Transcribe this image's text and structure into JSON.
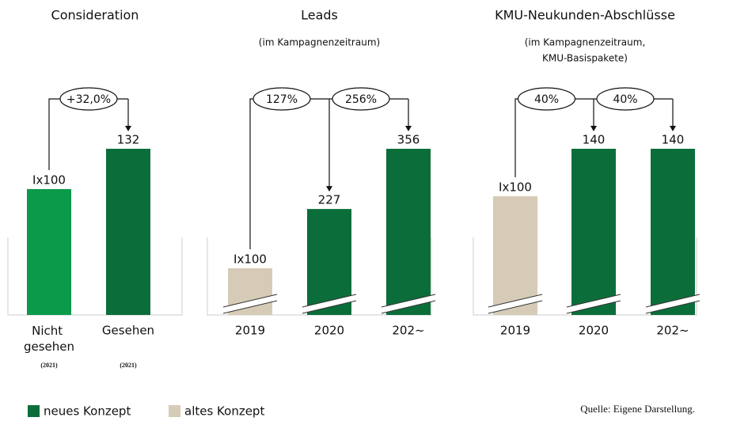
{
  "chart_data": [
    {
      "type": "bar",
      "title": "Consideration",
      "subtitle": [],
      "categories": [
        "Nicht gesehen",
        "Gesehen"
      ],
      "category_notes": [
        "(2021)",
        "(2021)"
      ],
      "values": [
        100,
        132
      ],
      "value_labels": [
        "Ix100",
        "132"
      ],
      "colors": [
        "#0a9a4a",
        "#0b6e3a"
      ],
      "annotations": [
        "+32,0%"
      ],
      "axis_break": false
    },
    {
      "type": "bar",
      "title": "Leads",
      "subtitle": [
        "(im Kampagnenzeitraum)"
      ],
      "categories": [
        "2019",
        "2020",
        "202~"
      ],
      "category_notes": [],
      "values": [
        100,
        227,
        356
      ],
      "value_labels": [
        "Ix100",
        "227",
        "356"
      ],
      "colors": [
        "#d6cbb7",
        "#0b6e3a",
        "#0b6e3a"
      ],
      "annotations": [
        "127%",
        "256%"
      ],
      "axis_break": true
    },
    {
      "type": "bar",
      "title": "KMU-Neukunden-Abschlüsse",
      "subtitle": [
        "(im Kampagnenzeitraum,",
        "KMU-Basispakete)"
      ],
      "categories": [
        "2019",
        "2020",
        "202~"
      ],
      "category_notes": [],
      "values": [
        100,
        140,
        140
      ],
      "value_labels": [
        "Ix100",
        "140",
        "140"
      ],
      "colors": [
        "#d6cbb7",
        "#0b6e3a",
        "#0b6e3a"
      ],
      "annotations": [
        "40%",
        "40%"
      ],
      "axis_break": true
    }
  ],
  "legend": [
    {
      "name": "neues Konzept",
      "color": "#0b6e3a"
    },
    {
      "name": "altes Konzept",
      "color": "#d6cbb7"
    }
  ],
  "source": "Quelle: Eigene Darstellung."
}
